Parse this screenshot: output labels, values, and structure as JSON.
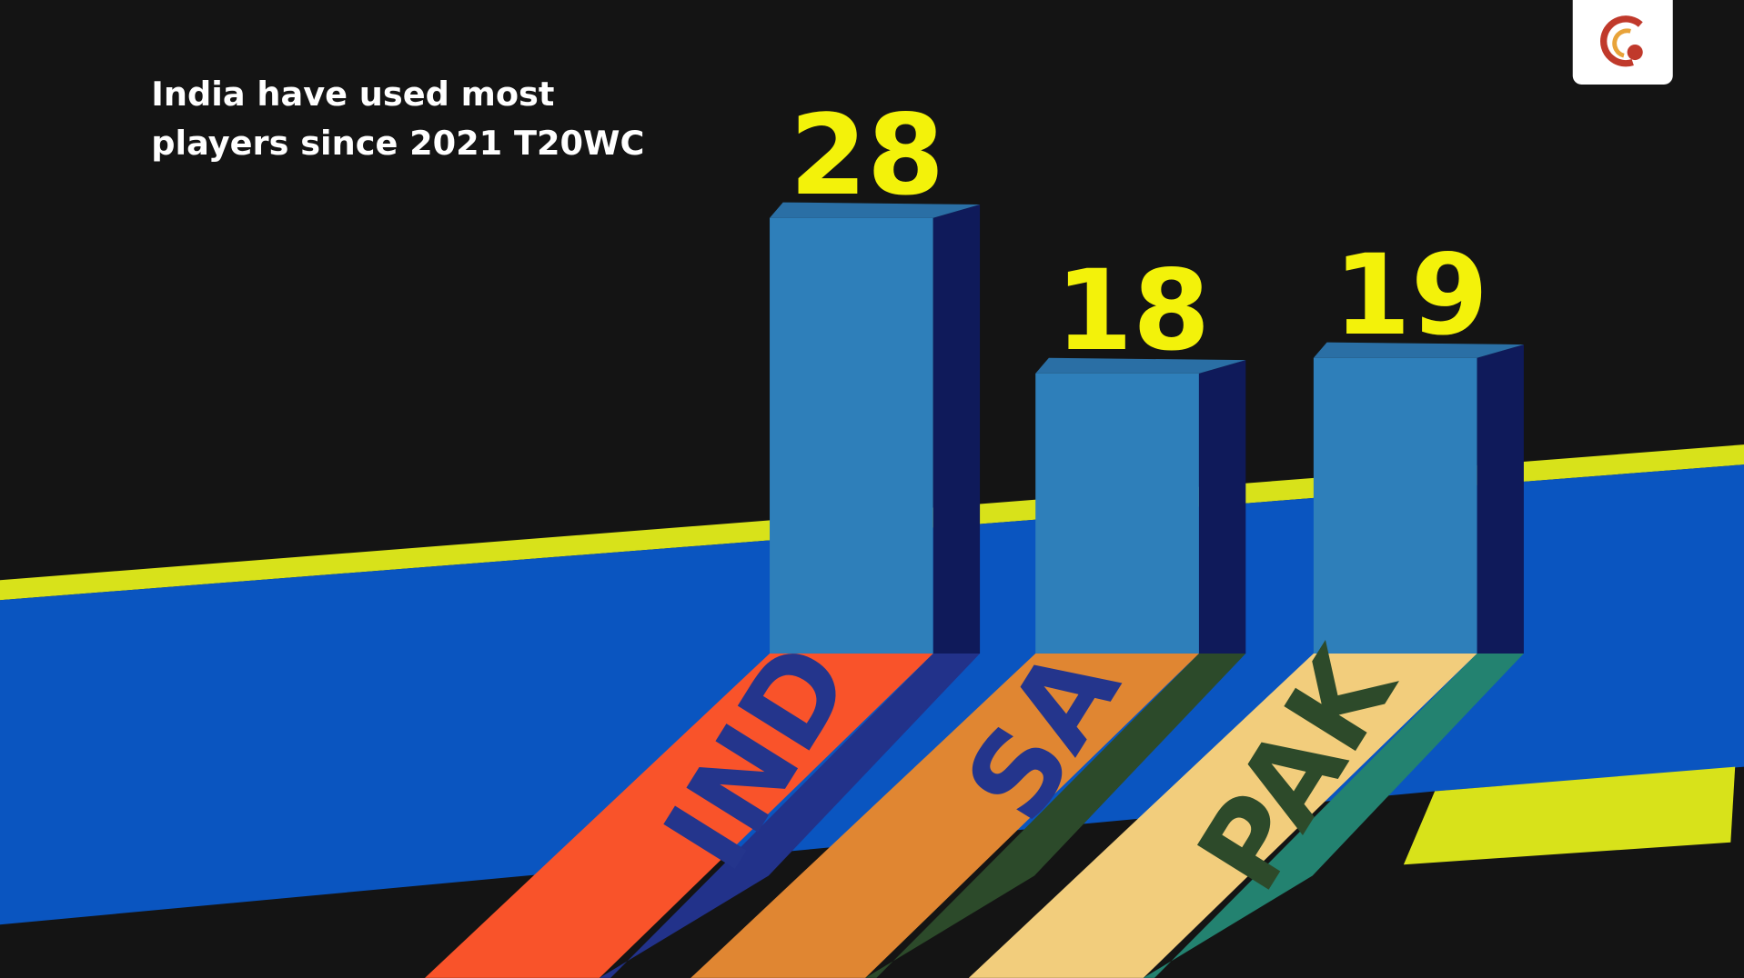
{
  "chart_data": {
    "type": "bar",
    "title": "India have used most players since 2021 T20WC",
    "categories": [
      "IND",
      "SA",
      "PAK"
    ],
    "values": [
      28,
      18,
      19
    ],
    "color": "#2e7fba"
  }
}
